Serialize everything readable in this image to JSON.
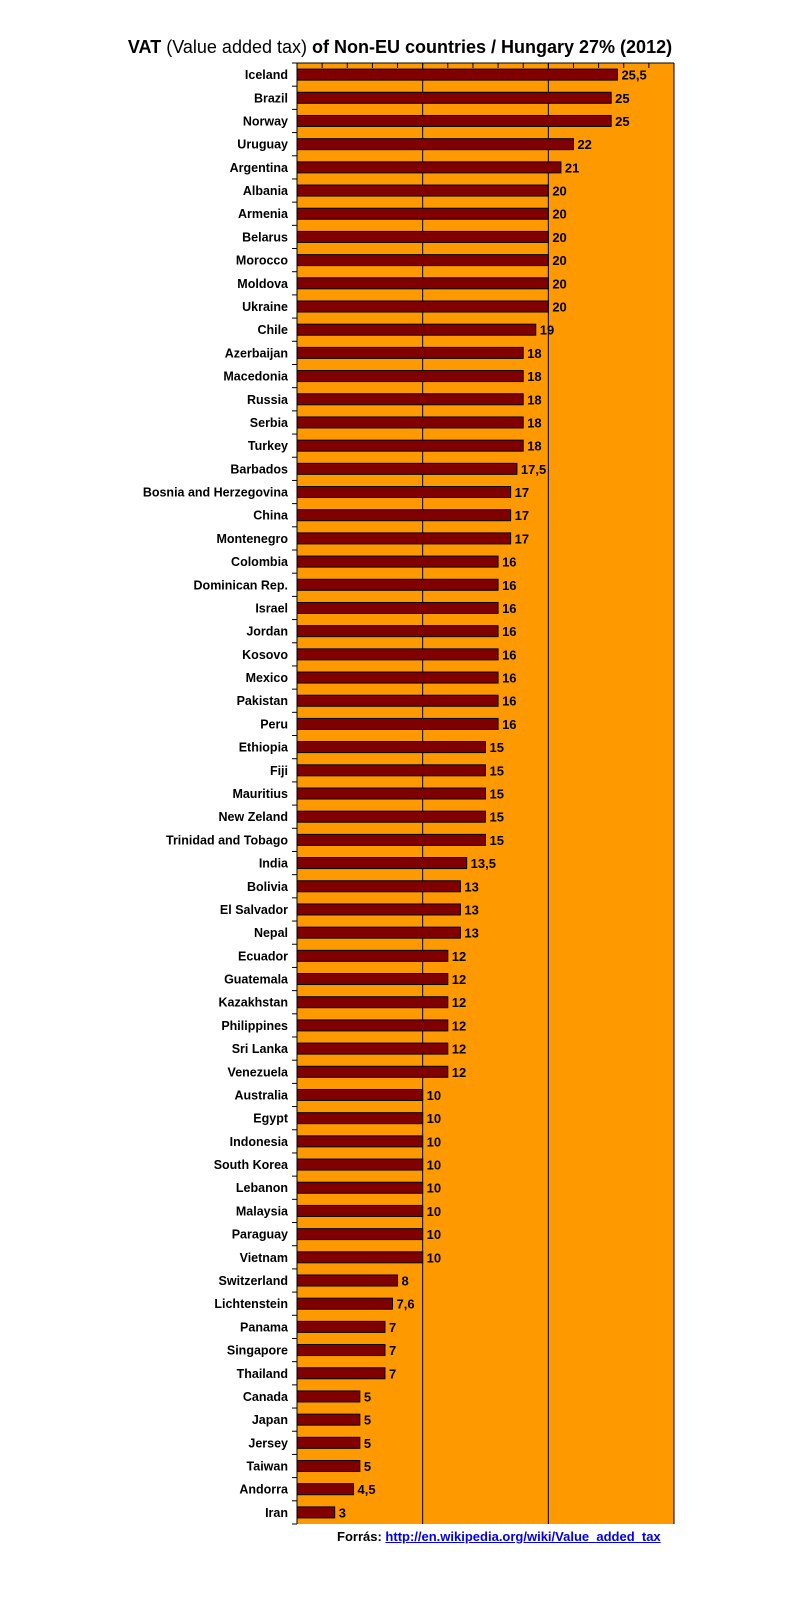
{
  "chart_data": {
    "type": "bar",
    "orientation": "horizontal",
    "title_parts": {
      "bold1": "VAT",
      "normal": "(Value added tax)",
      "bold2": "of Non-EU countries  /  Hungary 27% (2012)"
    },
    "categories": [
      "Iceland",
      "Brazil",
      "Norway",
      "Uruguay",
      "Argentina",
      "Albania",
      "Armenia",
      "Belarus",
      "Morocco",
      "Moldova",
      "Ukraine",
      "Chile",
      "Azerbaijan",
      "Macedonia",
      "Russia",
      "Serbia",
      "Turkey",
      "Barbados",
      "Bosnia and Herzegovina",
      "China",
      "Montenegro",
      "Colombia",
      "Dominican Rep.",
      "Israel",
      "Jordan",
      "Kosovo",
      "Mexico",
      "Pakistan",
      "Peru",
      "Ethiopia",
      "Fiji",
      "Mauritius",
      "New Zeland",
      "Trinidad and Tobago",
      "India",
      "Bolivia",
      "El Salvador",
      "Nepal",
      "Ecuador",
      "Guatemala",
      "Kazakhstan",
      "Philippines",
      "Sri Lanka",
      "Venezuela",
      "Australia",
      "Egypt",
      "Indonesia",
      "South Korea",
      "Lebanon",
      "Malaysia",
      "Paraguay",
      "Vietnam",
      "Switzerland",
      "Lichtenstein",
      "Panama",
      "Singapore",
      "Thailand",
      "Canada",
      "Japan",
      "Jersey",
      "Taiwan",
      "Andorra",
      "Iran"
    ],
    "values": [
      25.5,
      25,
      25,
      22,
      21,
      20,
      20,
      20,
      20,
      20,
      20,
      19,
      18,
      18,
      18,
      18,
      18,
      17.5,
      17,
      17,
      17,
      16,
      16,
      16,
      16,
      16,
      16,
      16,
      16,
      15,
      15,
      15,
      15,
      15,
      13.5,
      13,
      13,
      13,
      12,
      12,
      12,
      12,
      12,
      12,
      10,
      10,
      10,
      10,
      10,
      10,
      10,
      10,
      8,
      7.6,
      7,
      7,
      7,
      5,
      5,
      5,
      5,
      4.5,
      3
    ],
    "data_labels": [
      "25,5",
      "25",
      "25",
      "22",
      "21",
      "20",
      "20",
      "20",
      "20",
      "20",
      "20",
      "19",
      "18",
      "18",
      "18",
      "18",
      "18",
      "17,5",
      "17",
      "17",
      "17",
      "16",
      "16",
      "16",
      "16",
      "16",
      "16",
      "16",
      "16",
      "15",
      "15",
      "15",
      "15",
      "15",
      "13,5",
      "13",
      "13",
      "13",
      "12",
      "12",
      "12",
      "12",
      "12",
      "12",
      "10",
      "10",
      "10",
      "10",
      "10",
      "10",
      "10",
      "10",
      "8",
      "7,6",
      "7",
      "7",
      "7",
      "5",
      "5",
      "5",
      "5",
      "4,5",
      "3"
    ],
    "xlim": [
      0,
      30
    ],
    "x_gridlines": [
      10,
      20
    ],
    "x_minor_tick_step": 2,
    "xlabel": "",
    "ylabel": "",
    "colors": {
      "bar": "#800000",
      "plot_bg": "#FF9900",
      "grid": "#000000"
    }
  },
  "source": {
    "label": "Forrás:",
    "link": "http://en.wikipedia.org/wiki/Value_added_tax"
  }
}
